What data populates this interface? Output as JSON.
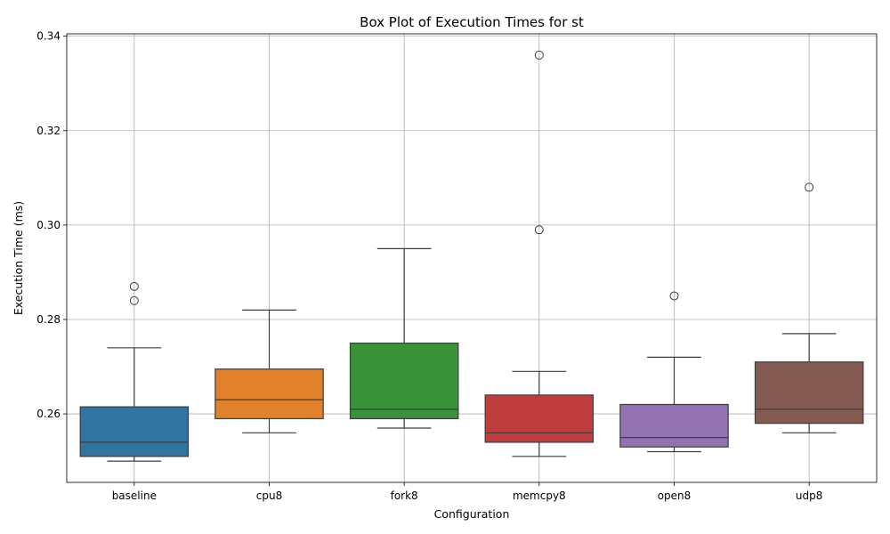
{
  "chart_data": {
    "type": "box",
    "title": "Box Plot of Execution Times for st",
    "xlabel": "Configuration",
    "ylabel": "Execution Time (ms)",
    "ylim": [
      0.2455,
      0.3405
    ],
    "yticks": [
      "0.26",
      "0.28",
      "0.30",
      "0.32",
      "0.34"
    ],
    "ytick_values": [
      0.26,
      0.28,
      0.3,
      0.32,
      0.34
    ],
    "grid": true,
    "categories": [
      "baseline",
      "cpu8",
      "fork8",
      "memcpy8",
      "open8",
      "udp8"
    ],
    "boxes": [
      {
        "category": "baseline",
        "whisker_low": 0.25,
        "q1": 0.251,
        "median": 0.254,
        "q3": 0.2615,
        "whisker_high": 0.274,
        "outliers": [
          0.284,
          0.287
        ],
        "color": "#3274a1"
      },
      {
        "category": "cpu8",
        "whisker_low": 0.256,
        "q1": 0.259,
        "median": 0.263,
        "q3": 0.2695,
        "whisker_high": 0.282,
        "outliers": [],
        "color": "#e1812c"
      },
      {
        "category": "fork8",
        "whisker_low": 0.257,
        "q1": 0.259,
        "median": 0.261,
        "q3": 0.275,
        "whisker_high": 0.295,
        "outliers": [],
        "color": "#3a923a"
      },
      {
        "category": "memcpy8",
        "whisker_low": 0.251,
        "q1": 0.254,
        "median": 0.256,
        "q3": 0.264,
        "whisker_high": 0.269,
        "outliers": [
          0.299,
          0.336
        ],
        "color": "#c03d3e"
      },
      {
        "category": "open8",
        "whisker_low": 0.252,
        "q1": 0.253,
        "median": 0.255,
        "q3": 0.262,
        "whisker_high": 0.272,
        "outliers": [
          0.285
        ],
        "color": "#9372b2"
      },
      {
        "category": "udp8",
        "whisker_low": 0.256,
        "q1": 0.258,
        "median": 0.261,
        "q3": 0.271,
        "whisker_high": 0.277,
        "outliers": [
          0.308
        ],
        "color": "#845b53"
      }
    ]
  }
}
